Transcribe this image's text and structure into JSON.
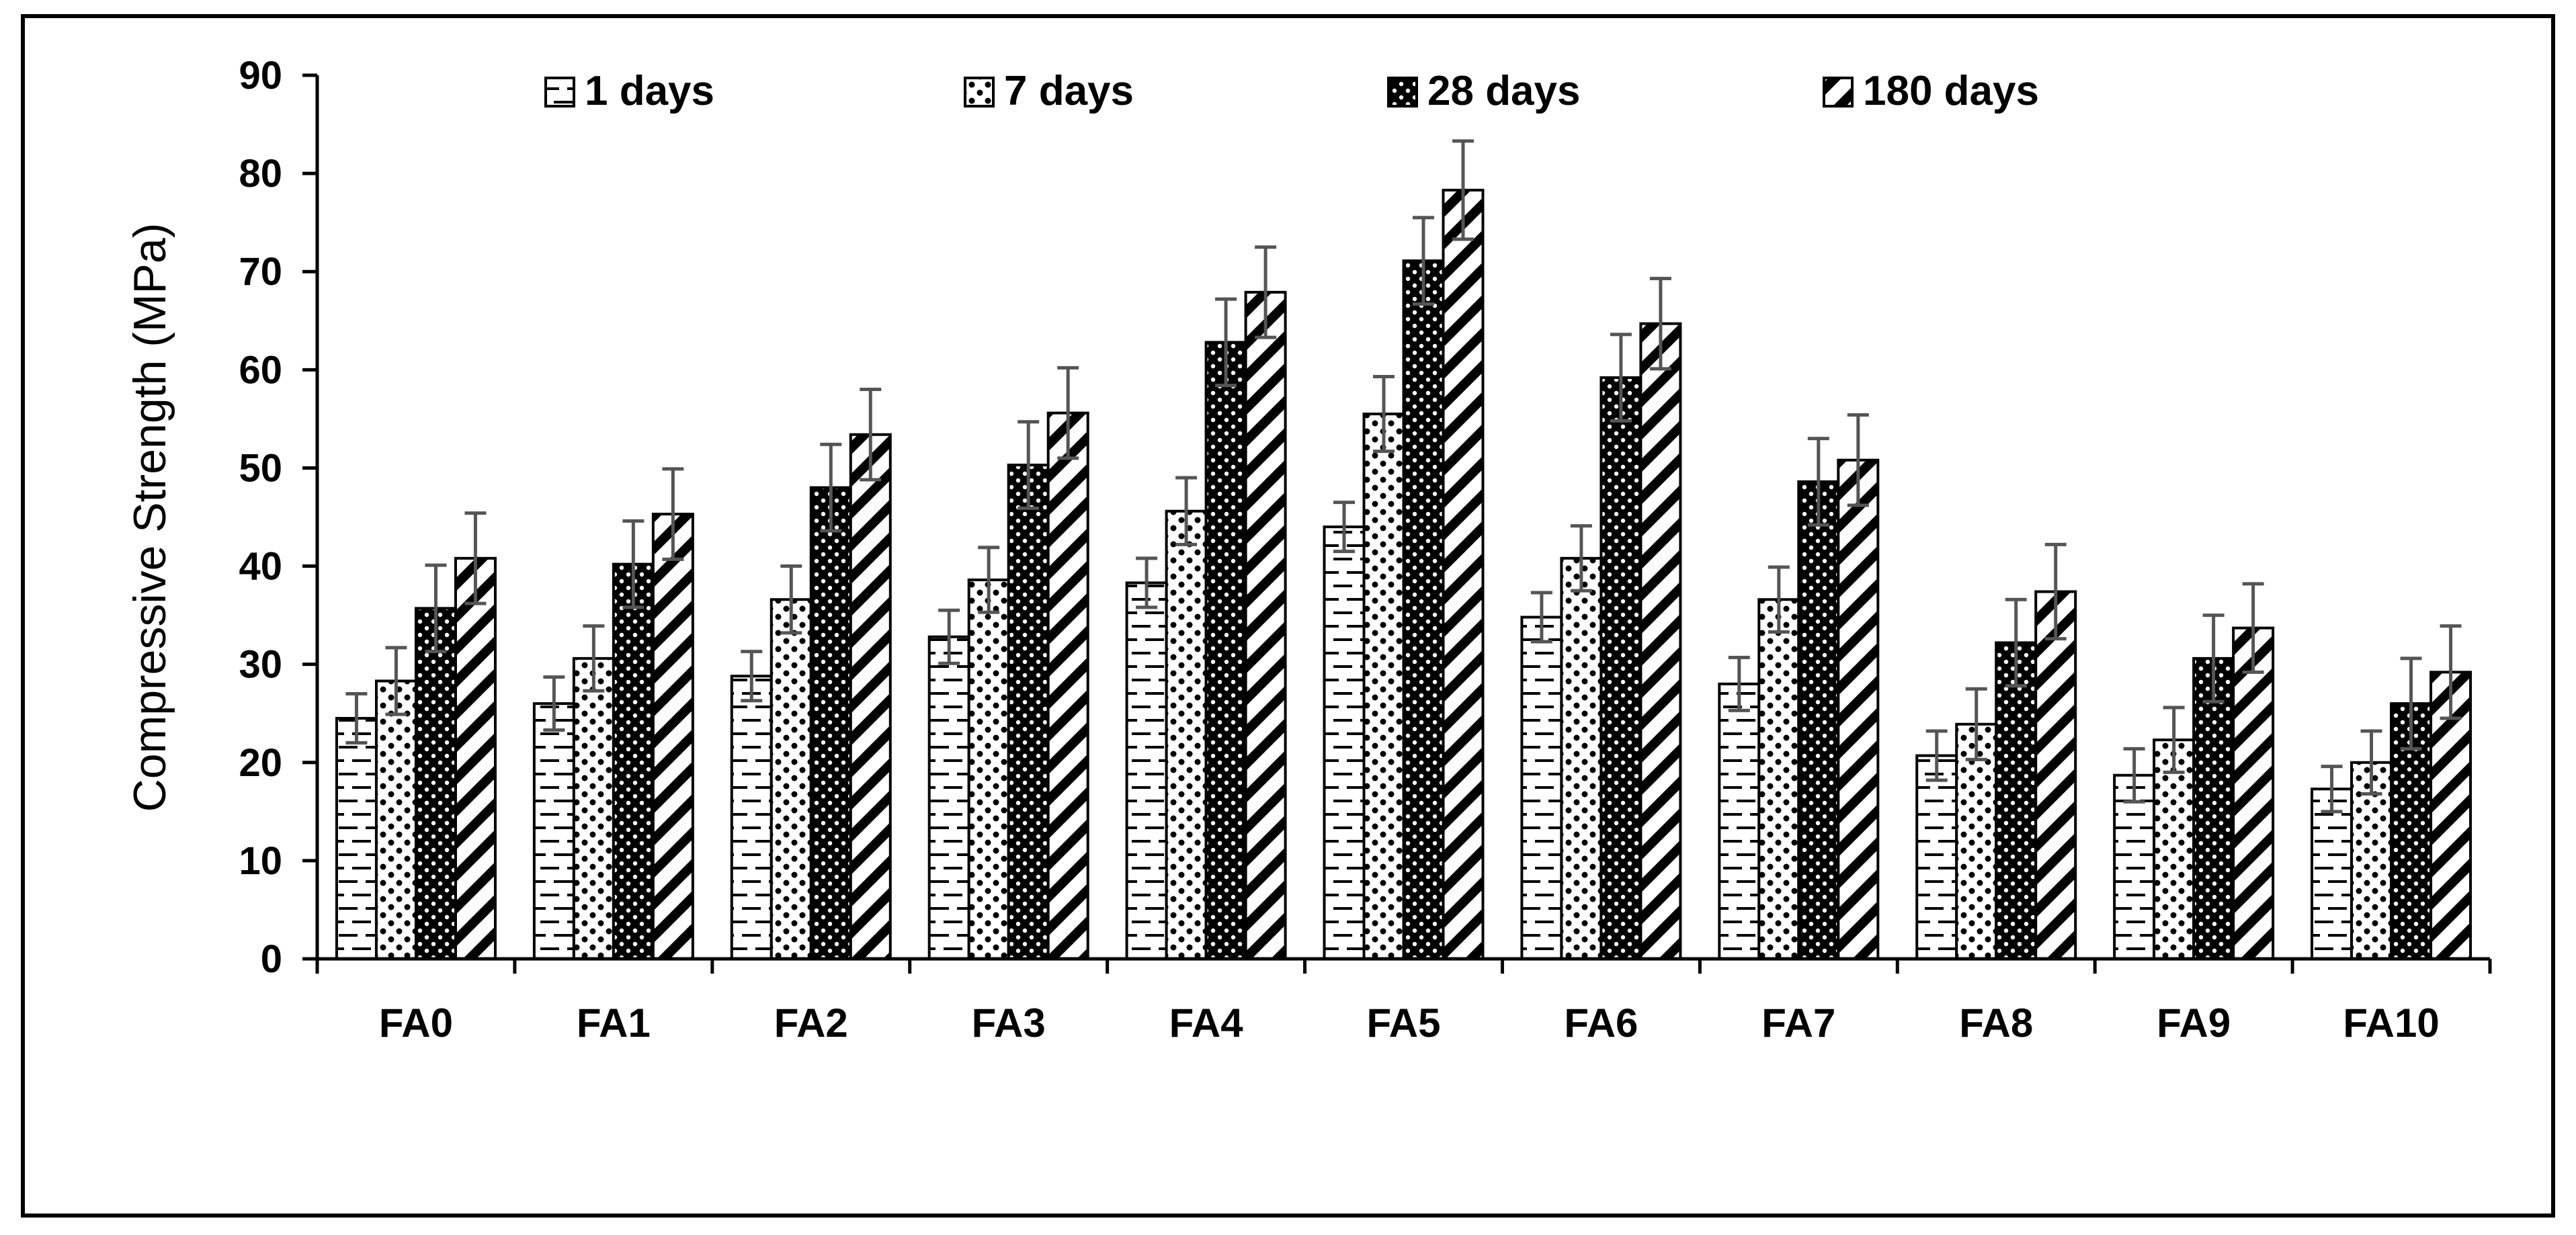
{
  "chart_data": {
    "type": "bar",
    "title": "",
    "xlabel": "",
    "ylabel": "Compressive Strength (MPa)",
    "ylim": [
      0,
      90
    ],
    "yticks": [
      0,
      10,
      20,
      30,
      40,
      50,
      60,
      70,
      80,
      90
    ],
    "legend_position": "top",
    "categories": [
      "FA0",
      "FA1",
      "FA2",
      "FA3",
      "FA4",
      "FA5",
      "FA6",
      "FA7",
      "FA8",
      "FA9",
      "FA10"
    ],
    "series": [
      {
        "name": "1 days",
        "pattern": "horizontal-dashes",
        "values": [
          24.5,
          26.0,
          28.8,
          32.8,
          38.3,
          44.0,
          34.8,
          28.0,
          20.7,
          18.7,
          17.3
        ],
        "errors": [
          2.5,
          2.7,
          2.5,
          2.7,
          2.5,
          2.5,
          2.5,
          2.7,
          2.5,
          2.7,
          2.3
        ]
      },
      {
        "name": "7 days",
        "pattern": "dots",
        "values": [
          28.3,
          30.6,
          36.6,
          38.6,
          45.6,
          55.5,
          40.8,
          36.6,
          23.9,
          22.3,
          20.0
        ],
        "errors": [
          3.4,
          3.3,
          3.4,
          3.3,
          3.4,
          3.8,
          3.3,
          3.3,
          3.6,
          3.3,
          3.2
        ]
      },
      {
        "name": "28 days",
        "pattern": "dense-dots",
        "values": [
          35.7,
          40.2,
          48.0,
          50.3,
          62.8,
          71.1,
          59.2,
          48.6,
          32.2,
          30.6,
          26.0
        ],
        "errors": [
          4.4,
          4.4,
          4.4,
          4.4,
          4.4,
          4.4,
          4.4,
          4.4,
          4.4,
          4.4,
          4.6
        ]
      },
      {
        "name": "180 days",
        "pattern": "diagonal-stripes",
        "values": [
          40.8,
          45.3,
          53.4,
          55.6,
          67.9,
          78.3,
          64.7,
          50.8,
          37.4,
          33.7,
          29.2
        ],
        "errors": [
          4.6,
          4.6,
          4.6,
          4.6,
          4.6,
          5.0,
          4.6,
          4.6,
          4.8,
          4.5,
          4.7
        ]
      }
    ]
  }
}
